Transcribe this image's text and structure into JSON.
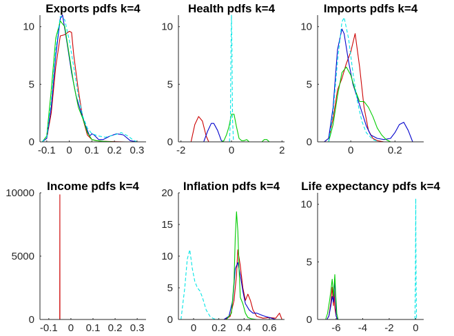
{
  "colors": {
    "red": "#cc0000",
    "blue": "#0000cc",
    "green": "#00cc00",
    "cyan": "#00e5e5"
  },
  "chart_data": [
    {
      "type": "line",
      "title": "Exports pdfs k=4",
      "xlim": [
        -0.13,
        0.34
      ],
      "ylim": [
        0,
        11
      ],
      "xticks": [
        -0.1,
        0,
        0.1,
        0.2,
        0.3
      ],
      "xtick_labels": [
        "-0.1",
        "0",
        "0.1",
        "0.2",
        "0.3"
      ],
      "yticks": [
        0,
        5,
        10
      ],
      "ytick_labels": [
        "0",
        "5",
        "10"
      ],
      "series": [
        {
          "color": "red",
          "dashed": false,
          "x": [
            -0.12,
            -0.1,
            -0.08,
            -0.06,
            -0.04,
            -0.02,
            0.0,
            0.01,
            0.02,
            0.04,
            0.06,
            0.08,
            0.1,
            0.12,
            0.15,
            0.2,
            0.25,
            0.3
          ],
          "y": [
            0,
            0.3,
            2.5,
            6.5,
            9.2,
            9.3,
            9.6,
            9.5,
            7.5,
            4.5,
            2.0,
            0.6,
            0.2,
            0.1,
            0.05,
            0.02,
            0,
            0
          ]
        },
        {
          "color": "blue",
          "dashed": false,
          "x": [
            -0.12,
            -0.1,
            -0.08,
            -0.06,
            -0.04,
            -0.03,
            -0.01,
            0.01,
            0.03,
            0.05,
            0.07,
            0.09,
            0.1,
            0.11,
            0.13,
            0.15,
            0.18,
            0.21,
            0.24,
            0.27,
            0.3
          ],
          "y": [
            0,
            0.3,
            3.0,
            7.5,
            10.7,
            11.0,
            8.6,
            6.0,
            4.0,
            2.7,
            1.5,
            0.5,
            0.7,
            0.6,
            0.2,
            0.2,
            0.5,
            0.7,
            0.6,
            0.1,
            0
          ]
        },
        {
          "color": "green",
          "dashed": false,
          "x": [
            -0.12,
            -0.1,
            -0.08,
            -0.06,
            -0.04,
            -0.02,
            0.0,
            0.02,
            0.04,
            0.06,
            0.08,
            0.1,
            0.12,
            0.15,
            0.2,
            0.25,
            0.3
          ],
          "y": [
            0,
            0.5,
            4.5,
            9.0,
            10.5,
            10.0,
            7.5,
            5.0,
            3.0,
            2.0,
            0.8,
            0.2,
            0.1,
            0.05,
            0,
            0,
            0
          ]
        },
        {
          "color": "cyan",
          "dashed": true,
          "x": [
            -0.12,
            -0.1,
            -0.08,
            -0.06,
            -0.04,
            -0.02,
            0.0,
            0.02,
            0.04,
            0.06,
            0.08,
            0.1,
            0.13,
            0.16,
            0.2,
            0.23,
            0.26,
            0.28,
            0.3
          ],
          "y": [
            0,
            0.4,
            3.5,
            8.0,
            10.9,
            10.6,
            8.8,
            6.5,
            4.0,
            2.2,
            1.2,
            0.7,
            0.5,
            0.4,
            0.6,
            0.8,
            0.5,
            0.2,
            0
          ]
        }
      ]
    },
    {
      "type": "line",
      "title": "Health pdfs k=4",
      "xlim": [
        -2.1,
        2.1
      ],
      "ylim": [
        0,
        11
      ],
      "xticks": [
        -2,
        0,
        2
      ],
      "xtick_labels": [
        "-2",
        "0",
        "2"
      ],
      "yticks": [
        0,
        5,
        10
      ],
      "ytick_labels": [
        "0",
        "5",
        "10"
      ],
      "series": [
        {
          "color": "red",
          "dashed": false,
          "x": [
            -1.6,
            -1.45,
            -1.3,
            -1.15,
            -1.0,
            -0.9
          ],
          "y": [
            0,
            1.5,
            2.2,
            1.8,
            0.5,
            0
          ]
        },
        {
          "color": "blue",
          "dashed": false,
          "x": [
            -1.1,
            -0.95,
            -0.8,
            -0.7,
            -0.55,
            -0.4,
            -0.3
          ],
          "y": [
            0,
            0.9,
            1.6,
            1.6,
            1.0,
            0.1,
            0
          ]
        },
        {
          "color": "green",
          "dashed": false,
          "x": [
            -0.4,
            -0.3,
            -0.2,
            -0.1,
            0.0,
            0.1,
            0.2,
            0.3,
            0.4,
            0.5,
            0.6,
            0.7,
            1.2,
            1.3,
            1.4,
            1.5
          ],
          "y": [
            0,
            0.1,
            0.6,
            1.3,
            2.4,
            2.4,
            1.3,
            0.3,
            0.1,
            0.1,
            0.2,
            0,
            0,
            0.2,
            0.2,
            0
          ]
        },
        {
          "color": "cyan",
          "dashed": true,
          "x": [
            -0.08,
            -0.04,
            -0.02,
            0.0,
            0.02,
            0.04,
            0.08
          ],
          "y": [
            0,
            2.0,
            8.0,
            11.0,
            8.0,
            2.0,
            0
          ]
        }
      ]
    },
    {
      "type": "line",
      "title": "Imports pdfs k=4",
      "xlim": [
        -0.15,
        0.33
      ],
      "ylim": [
        0,
        11
      ],
      "xticks": [
        0,
        0.2
      ],
      "xtick_labels": [
        "0",
        "0.2"
      ],
      "yticks": [
        0,
        5,
        10
      ],
      "ytick_labels": [
        "0",
        "5",
        "10"
      ],
      "series": [
        {
          "color": "red",
          "dashed": false,
          "x": [
            -0.12,
            -0.1,
            -0.08,
            -0.06,
            -0.04,
            -0.02,
            0.0,
            0.02,
            0.04,
            0.06,
            0.08,
            0.1,
            0.12,
            0.15
          ],
          "y": [
            0,
            0.3,
            2.0,
            4.5,
            5.5,
            6.8,
            7.8,
            9.4,
            6.5,
            3.0,
            1.0,
            0.3,
            0.1,
            0
          ]
        },
        {
          "color": "blue",
          "dashed": false,
          "x": [
            -0.12,
            -0.1,
            -0.08,
            -0.06,
            -0.04,
            -0.03,
            -0.01,
            0.01,
            0.03,
            0.05,
            0.07,
            0.09,
            0.12,
            0.15,
            0.18,
            0.2,
            0.22,
            0.24,
            0.26,
            0.28
          ],
          "y": [
            0,
            0.3,
            3.0,
            8.0,
            9.8,
            9.4,
            7.0,
            5.0,
            3.8,
            2.6,
            1.4,
            0.6,
            0.3,
            0.2,
            0.3,
            0.8,
            1.5,
            1.7,
            1.0,
            0
          ]
        },
        {
          "color": "green",
          "dashed": false,
          "x": [
            -0.1,
            -0.08,
            -0.06,
            -0.04,
            -0.02,
            0.0,
            0.02,
            0.04,
            0.06,
            0.08,
            0.1,
            0.12,
            0.14,
            0.16,
            0.18
          ],
          "y": [
            0,
            1.5,
            4.0,
            6.0,
            6.5,
            5.8,
            4.5,
            3.5,
            3.5,
            3.0,
            2.2,
            1.2,
            0.6,
            0.2,
            0
          ]
        },
        {
          "color": "cyan",
          "dashed": true,
          "x": [
            -0.1,
            -0.08,
            -0.06,
            -0.04,
            -0.03,
            -0.01,
            0.01,
            0.03,
            0.05,
            0.07,
            0.1,
            0.13
          ],
          "y": [
            0,
            2.5,
            7.0,
            10.4,
            10.8,
            9.0,
            6.0,
            3.5,
            1.8,
            0.8,
            0.2,
            0
          ]
        }
      ]
    },
    {
      "type": "line",
      "title": "Income pdfs k=4",
      "xlim": [
        -0.14,
        0.34
      ],
      "ylim": [
        0,
        10000
      ],
      "xticks": [
        -0.1,
        0,
        0.1,
        0.2,
        0.3
      ],
      "xtick_labels": [
        "-0.1",
        "0",
        "0.1",
        "0.2",
        "0.3"
      ],
      "yticks": [
        0,
        5000,
        10000
      ],
      "ytick_labels": [
        "0",
        "5000",
        "10000"
      ],
      "series": [
        {
          "color": "blue",
          "dashed": false,
          "x": [
            -0.1,
            -0.05,
            0.0,
            0.05,
            0.1,
            0.15,
            0.2,
            0.25,
            0.3
          ],
          "y": [
            0,
            0,
            0,
            0,
            0,
            0,
            0,
            0,
            0
          ]
        },
        {
          "color": "red",
          "dashed": false,
          "x": [
            -0.0505,
            -0.05,
            -0.0495
          ],
          "y": [
            0,
            9850,
            0
          ]
        }
      ]
    },
    {
      "type": "line",
      "title": "Inflation pdfs k=4",
      "xlim": [
        -0.12,
        0.72
      ],
      "ylim": [
        0,
        20
      ],
      "xticks": [
        0,
        0.2,
        0.4,
        0.6
      ],
      "xtick_labels": [
        "0",
        "0.2",
        "0.4",
        "0.6"
      ],
      "yticks": [
        0,
        5,
        10,
        15,
        20
      ],
      "ytick_labels": [
        "0",
        "5",
        "10",
        "15",
        "20"
      ],
      "series": [
        {
          "color": "red",
          "dashed": false,
          "x": [
            0.25,
            0.29,
            0.32,
            0.34,
            0.35,
            0.37,
            0.39,
            0.41,
            0.43,
            0.45,
            0.47,
            0.5,
            0.55,
            0.6,
            0.65,
            0.68,
            0.7
          ],
          "y": [
            0,
            0.5,
            3.0,
            7.0,
            11.0,
            8.5,
            5.0,
            3.0,
            4.0,
            3.0,
            1.5,
            0.5,
            0.2,
            0.3,
            0.2,
            1.0,
            0
          ]
        },
        {
          "color": "blue",
          "dashed": false,
          "x": [
            0.24,
            0.28,
            0.31,
            0.33,
            0.35,
            0.37,
            0.39,
            0.41,
            0.44,
            0.47,
            0.5,
            0.55,
            0.6,
            0.65
          ],
          "y": [
            0,
            0.5,
            3.0,
            8.0,
            9.0,
            7.0,
            4.5,
            2.5,
            1.5,
            1.0,
            1.0,
            0.6,
            0.3,
            0
          ]
        },
        {
          "color": "green",
          "dashed": false,
          "x": [
            0.26,
            0.3,
            0.32,
            0.33,
            0.34,
            0.35,
            0.36,
            0.37,
            0.39,
            0.41,
            0.43,
            0.46,
            0.5
          ],
          "y": [
            0,
            1.0,
            6.0,
            13.0,
            17.0,
            14.0,
            8.0,
            3.5,
            2.5,
            1.0,
            0.3,
            0.1,
            0
          ]
        },
        {
          "color": "cyan",
          "dashed": true,
          "x": [
            -0.1,
            -0.07,
            -0.05,
            -0.03,
            -0.01,
            0.01,
            0.03,
            0.05,
            0.07,
            0.1,
            0.13,
            0.16,
            0.2
          ],
          "y": [
            0,
            5.0,
            9.5,
            11.0,
            8.0,
            6.0,
            5.0,
            4.5,
            3.5,
            1.5,
            0.5,
            0.1,
            0
          ]
        }
      ]
    },
    {
      "type": "line",
      "title": "Life expectancy pdfs k=4",
      "xlim": [
        -7.4,
        0.6
      ],
      "ylim": [
        0,
        11
      ],
      "xticks": [
        -6,
        -4,
        -2,
        0
      ],
      "xtick_labels": [
        "-6",
        "-4",
        "-2",
        "0"
      ],
      "yticks": [
        0,
        5,
        10
      ],
      "ytick_labels": [
        "0",
        "5",
        "10"
      ],
      "series": [
        {
          "color": "red",
          "dashed": false,
          "x": [
            -6.7,
            -6.55,
            -6.4,
            -6.3,
            -6.2,
            -6.15,
            -6.1,
            -6.0,
            -5.9
          ],
          "y": [
            0,
            0.3,
            1.5,
            2.8,
            1.2,
            2.5,
            1.0,
            0.3,
            0
          ]
        },
        {
          "color": "blue",
          "dashed": false,
          "x": [
            -6.7,
            -6.55,
            -6.4,
            -6.3,
            -6.2,
            -6.1,
            -6.05,
            -6.0,
            -5.9
          ],
          "y": [
            0,
            0.3,
            1.2,
            2.0,
            1.5,
            3.5,
            2.0,
            0.3,
            0
          ]
        },
        {
          "color": "green",
          "dashed": false,
          "x": [
            -6.8,
            -6.65,
            -6.5,
            -6.4,
            -6.3,
            -6.2,
            -6.1,
            -6.05,
            -5.95,
            -5.85
          ],
          "y": [
            0,
            0.5,
            1.6,
            2.5,
            3.5,
            2.0,
            3.9,
            2.5,
            0.5,
            0
          ]
        },
        {
          "color": "cyan",
          "dashed": true,
          "x": [
            -0.06,
            -0.03,
            -0.01,
            0.0,
            0.01,
            0.03,
            0.06
          ],
          "y": [
            0,
            3.0,
            8.0,
            10.5,
            8.0,
            3.0,
            0
          ]
        }
      ]
    }
  ]
}
